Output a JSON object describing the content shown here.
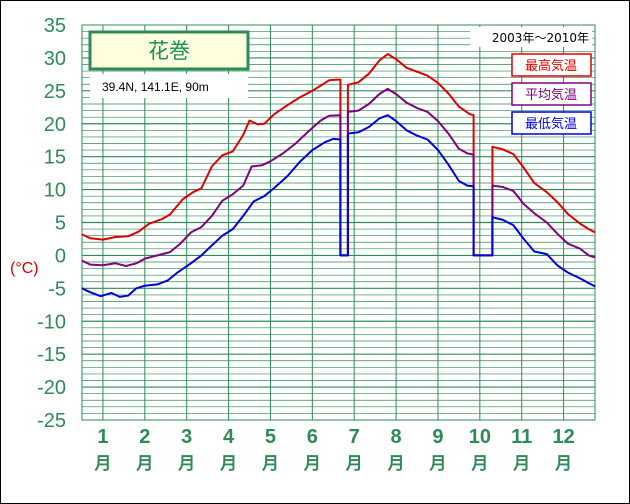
{
  "chart_data": {
    "type": "line",
    "title": "花巻",
    "subtitle": "39.4N, 141.1E, 90m",
    "period": "2003年～2010年",
    "ylabel": "(°C)",
    "ylim": [
      -25,
      35
    ],
    "yticks": [
      35,
      30,
      25,
      20,
      15,
      10,
      5,
      0,
      -5,
      -10,
      -15,
      -20,
      -25
    ],
    "xlim": [
      0.5,
      12.75
    ],
    "months": [
      {
        "num": "1",
        "unit": "月",
        "x": 1
      },
      {
        "num": "2",
        "unit": "月",
        "x": 2
      },
      {
        "num": "3",
        "unit": "月",
        "x": 3
      },
      {
        "num": "4",
        "unit": "月",
        "x": 4
      },
      {
        "num": "5",
        "unit": "月",
        "x": 5
      },
      {
        "num": "6",
        "unit": "月",
        "x": 6
      },
      {
        "num": "7",
        "unit": "月",
        "x": 7
      },
      {
        "num": "8",
        "unit": "月",
        "x": 8
      },
      {
        "num": "9",
        "unit": "月",
        "x": 9
      },
      {
        "num": "10",
        "unit": "月",
        "x": 10
      },
      {
        "num": "11",
        "unit": "月",
        "x": 11
      },
      {
        "num": "12",
        "unit": "月",
        "x": 12
      }
    ],
    "grid": true,
    "legend_position": "top-right",
    "series": [
      {
        "name": "最高気温",
        "color": "#e00000",
        "points": [
          [
            0.5,
            3.2
          ],
          [
            0.7,
            2.6
          ],
          [
            1.0,
            2.4
          ],
          [
            1.3,
            2.8
          ],
          [
            1.6,
            2.9
          ],
          [
            1.85,
            3.6
          ],
          [
            2.1,
            4.8
          ],
          [
            2.4,
            5.5
          ],
          [
            2.6,
            6.2
          ],
          [
            2.9,
            8.5
          ],
          [
            3.15,
            9.6
          ],
          [
            3.35,
            10.2
          ],
          [
            3.6,
            13.5
          ],
          [
            3.85,
            15.2
          ],
          [
            4.1,
            15.8
          ],
          [
            4.35,
            18.3
          ],
          [
            4.5,
            20.5
          ],
          [
            4.7,
            19.9
          ],
          [
            4.85,
            20.0
          ],
          [
            5.1,
            21.5
          ],
          [
            5.4,
            22.8
          ],
          [
            5.7,
            24.0
          ],
          [
            6.0,
            25.0
          ],
          [
            6.2,
            25.8
          ],
          [
            6.4,
            26.6
          ],
          [
            6.6,
            26.7
          ],
          [
            6.67,
            26.7
          ],
          [
            6.67,
            0
          ],
          [
            6.85,
            0
          ],
          [
            6.85,
            25.9
          ],
          [
            7.1,
            26.3
          ],
          [
            7.35,
            27.6
          ],
          [
            7.6,
            29.6
          ],
          [
            7.8,
            30.6
          ],
          [
            8.0,
            29.8
          ],
          [
            8.25,
            28.5
          ],
          [
            8.5,
            27.9
          ],
          [
            8.75,
            27.3
          ],
          [
            9.0,
            26.2
          ],
          [
            9.25,
            24.6
          ],
          [
            9.5,
            22.6
          ],
          [
            9.75,
            21.5
          ],
          [
            9.85,
            21.3
          ],
          [
            9.85,
            0
          ],
          [
            10.3,
            0
          ],
          [
            10.3,
            16.5
          ],
          [
            10.55,
            16.1
          ],
          [
            10.8,
            15.4
          ],
          [
            11.05,
            13.3
          ],
          [
            11.3,
            11.0
          ],
          [
            11.6,
            9.6
          ],
          [
            11.85,
            8.1
          ],
          [
            12.1,
            6.3
          ],
          [
            12.4,
            4.8
          ],
          [
            12.6,
            4.0
          ],
          [
            12.75,
            3.5
          ]
        ]
      },
      {
        "name": "平均気温",
        "color": "#800080",
        "points": [
          [
            0.5,
            -0.8
          ],
          [
            0.7,
            -1.4
          ],
          [
            1.0,
            -1.5
          ],
          [
            1.3,
            -1.2
          ],
          [
            1.55,
            -1.6
          ],
          [
            1.8,
            -1.2
          ],
          [
            2.0,
            -0.5
          ],
          [
            2.3,
            0.0
          ],
          [
            2.6,
            0.5
          ],
          [
            2.85,
            1.8
          ],
          [
            3.1,
            3.5
          ],
          [
            3.35,
            4.3
          ],
          [
            3.6,
            6.0
          ],
          [
            3.85,
            8.3
          ],
          [
            4.1,
            9.3
          ],
          [
            4.35,
            10.6
          ],
          [
            4.55,
            13.5
          ],
          [
            4.8,
            13.7
          ],
          [
            5.0,
            14.3
          ],
          [
            5.3,
            15.5
          ],
          [
            5.6,
            17.0
          ],
          [
            5.9,
            18.8
          ],
          [
            6.2,
            20.5
          ],
          [
            6.4,
            21.2
          ],
          [
            6.67,
            21.3
          ],
          [
            6.67,
            0
          ],
          [
            6.85,
            0
          ],
          [
            6.85,
            21.8
          ],
          [
            7.1,
            22.0
          ],
          [
            7.35,
            23.0
          ],
          [
            7.6,
            24.5
          ],
          [
            7.8,
            25.3
          ],
          [
            8.0,
            24.5
          ],
          [
            8.25,
            23.2
          ],
          [
            8.5,
            22.4
          ],
          [
            8.75,
            21.8
          ],
          [
            9.0,
            20.4
          ],
          [
            9.25,
            18.5
          ],
          [
            9.5,
            16.2
          ],
          [
            9.7,
            15.5
          ],
          [
            9.85,
            15.3
          ],
          [
            9.85,
            0
          ],
          [
            10.3,
            0
          ],
          [
            10.3,
            10.6
          ],
          [
            10.55,
            10.4
          ],
          [
            10.8,
            9.8
          ],
          [
            11.05,
            7.8
          ],
          [
            11.3,
            6.4
          ],
          [
            11.6,
            5.0
          ],
          [
            11.85,
            3.3
          ],
          [
            12.1,
            1.8
          ],
          [
            12.4,
            1.0
          ],
          [
            12.6,
            0.0
          ],
          [
            12.75,
            -0.3
          ]
        ]
      },
      {
        "name": "最低気温",
        "color": "#0000e0",
        "points": [
          [
            0.5,
            -5.0
          ],
          [
            0.7,
            -5.6
          ],
          [
            0.95,
            -6.2
          ],
          [
            1.2,
            -5.7
          ],
          [
            1.4,
            -6.3
          ],
          [
            1.6,
            -6.1
          ],
          [
            1.8,
            -5.0
          ],
          [
            2.0,
            -4.6
          ],
          [
            2.3,
            -4.4
          ],
          [
            2.55,
            -3.8
          ],
          [
            2.8,
            -2.5
          ],
          [
            3.1,
            -1.2
          ],
          [
            3.35,
            0.0
          ],
          [
            3.6,
            1.5
          ],
          [
            3.85,
            3.0
          ],
          [
            4.1,
            4.0
          ],
          [
            4.35,
            6.0
          ],
          [
            4.6,
            8.2
          ],
          [
            4.85,
            9.0
          ],
          [
            5.1,
            10.3
          ],
          [
            5.4,
            12.0
          ],
          [
            5.7,
            14.2
          ],
          [
            6.0,
            16.0
          ],
          [
            6.3,
            17.2
          ],
          [
            6.5,
            17.7
          ],
          [
            6.67,
            17.6
          ],
          [
            6.67,
            0
          ],
          [
            6.85,
            0
          ],
          [
            6.85,
            18.5
          ],
          [
            7.1,
            18.7
          ],
          [
            7.35,
            19.5
          ],
          [
            7.6,
            20.8
          ],
          [
            7.8,
            21.3
          ],
          [
            8.0,
            20.4
          ],
          [
            8.25,
            19.0
          ],
          [
            8.5,
            18.2
          ],
          [
            8.75,
            17.6
          ],
          [
            9.0,
            16.0
          ],
          [
            9.25,
            13.8
          ],
          [
            9.5,
            11.3
          ],
          [
            9.7,
            10.6
          ],
          [
            9.85,
            10.5
          ],
          [
            9.85,
            0
          ],
          [
            10.3,
            0
          ],
          [
            10.3,
            5.8
          ],
          [
            10.55,
            5.4
          ],
          [
            10.8,
            4.6
          ],
          [
            11.05,
            2.5
          ],
          [
            11.3,
            0.6
          ],
          [
            11.6,
            0.2
          ],
          [
            11.85,
            -1.5
          ],
          [
            12.1,
            -2.6
          ],
          [
            12.4,
            -3.5
          ],
          [
            12.6,
            -4.2
          ],
          [
            12.75,
            -4.7
          ]
        ]
      }
    ]
  }
}
